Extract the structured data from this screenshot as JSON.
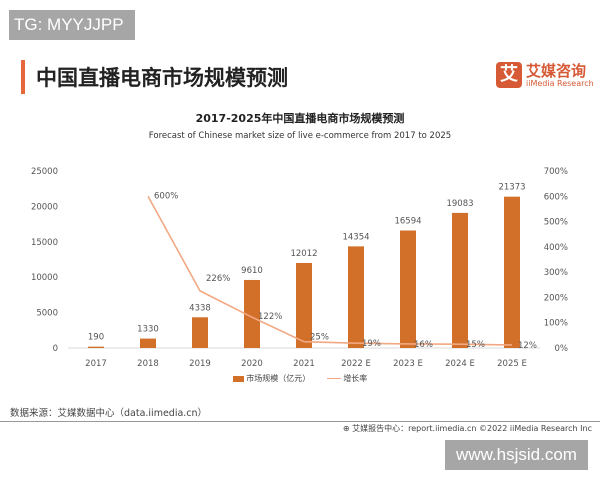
{
  "watermarks": {
    "top": "TG: MYYJJPP",
    "bottom": "www.hsjsid.com"
  },
  "header": {
    "title": "中国直播电商市场规模预测",
    "logo_mark": "艾",
    "logo_cn": "艾媒咨询",
    "logo_en": "iiMedia Research"
  },
  "chart_data": {
    "type": "bar+line",
    "title": "2017-2025年中国直播电商市场规模预测",
    "subtitle": "Forecast of Chinese market size of live e-commerce from 2017 to 2025",
    "categories": [
      "2017",
      "2018",
      "2019",
      "2020",
      "2021",
      "2022 E",
      "2023 E",
      "2024 E",
      "2025 E"
    ],
    "series": [
      {
        "name": "市场规模（亿元）",
        "type": "bar",
        "axis": "left",
        "values": [
          190,
          1330,
          4338,
          9610,
          12012,
          14354,
          16594,
          19083,
          21373
        ],
        "labels": [
          "190",
          "1330",
          "4338",
          "9610",
          "12012",
          "14354",
          "16594",
          "19083",
          "21373"
        ]
      },
      {
        "name": "增长率",
        "type": "line",
        "axis": "right",
        "values": [
          null,
          600,
          226,
          122,
          25,
          19,
          16,
          15,
          12
        ],
        "labels": [
          null,
          "600%",
          "226%",
          "122%",
          "25%",
          "19%",
          "16%",
          "15%",
          "12%"
        ]
      }
    ],
    "y_left": {
      "range": [
        0,
        25000
      ],
      "ticks": [
        "0",
        "5000",
        "10000",
        "15000",
        "20000",
        "25000"
      ]
    },
    "y_right": {
      "range": [
        0,
        700
      ],
      "ticks": [
        "0%",
        "100%",
        "200%",
        "300%",
        "400%",
        "500%",
        "600%",
        "700%"
      ]
    },
    "legend_position": "bottom",
    "grid": false,
    "colors": {
      "bar": "#d2702a",
      "line": "#f2a882"
    }
  },
  "footer": {
    "source": "数据来源：艾媒数据中心（data.iimedia.cn）",
    "report": "艾媒报告中心：report.iimedia.cn   ©2022  iiMedia Research  Inc"
  }
}
